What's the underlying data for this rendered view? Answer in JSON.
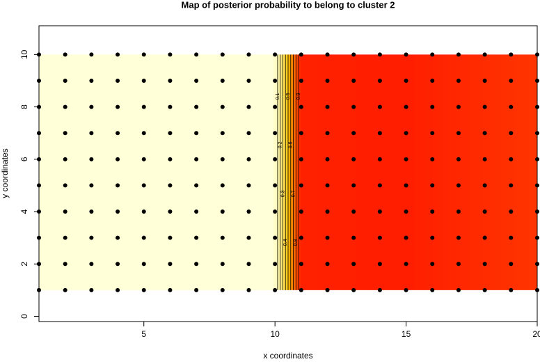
{
  "chart_data": {
    "type": "probability-map",
    "title": "Map of posterior probability to belong to cluster  2",
    "xlabel": "x coordinates",
    "ylabel": "y coordinates",
    "xlim": [
      1,
      20
    ],
    "ylim": [
      -0.2,
      11.1
    ],
    "xticks": [
      5,
      10,
      15,
      20
    ],
    "yticks": [
      0,
      2,
      4,
      6,
      8,
      10
    ],
    "profile": {
      "x": [
        1,
        9.9,
        10.1,
        10.3,
        10.5,
        10.7,
        10.9,
        11,
        15,
        20
      ],
      "values": [
        0,
        0,
        0.1,
        0.3,
        0.5,
        0.7,
        0.9,
        0.97,
        0.98,
        0.9
      ]
    },
    "field_y": [
      1,
      10
    ],
    "color_scale": [
      "#ffffd8",
      "#fff080",
      "#ffc000",
      "#ff6000",
      "#ff1800"
    ],
    "contour_levels": [
      0.1,
      0.2,
      0.3,
      0.4,
      0.5,
      0.6,
      0.7,
      0.8,
      0.9
    ],
    "points": {
      "x": [
        1,
        2,
        3,
        4,
        5,
        6,
        7,
        8,
        9,
        10,
        11,
        12,
        13,
        14,
        15,
        16,
        17,
        18,
        19,
        20
      ],
      "y": [
        1,
        2,
        3,
        4,
        5,
        6,
        7,
        8,
        9,
        10
      ]
    },
    "point_color": "#000000"
  }
}
